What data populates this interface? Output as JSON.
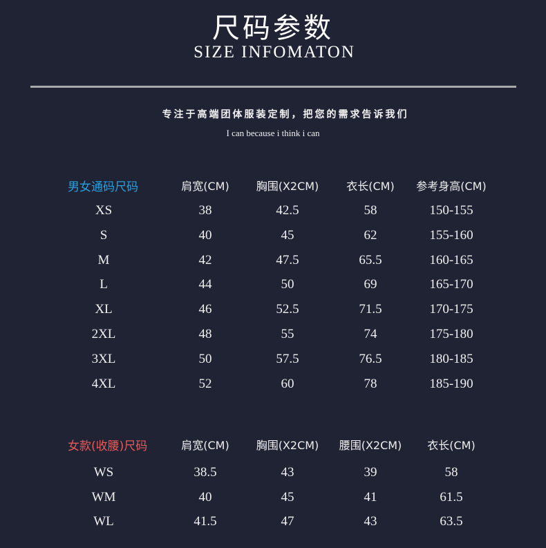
{
  "header": {
    "title": "尺码参数",
    "subtitle": "SIZE INFOMATON",
    "slogan": "专注于高端团体服装定制，把您的需求告诉我们",
    "motto": "I can because i think i can"
  },
  "colors": {
    "background": "#1f2334",
    "unisex_label": "#27a0e0",
    "women_label": "#e85a5a"
  },
  "unisex_table": {
    "label": "男女通码尺码",
    "columns": [
      "肩宽(CM)",
      "胸围(X2CM)",
      "衣长(CM)",
      "参考身高(CM)"
    ],
    "rows": [
      [
        "XS",
        "38",
        "42.5",
        "58",
        "150-155"
      ],
      [
        "S",
        "40",
        "45",
        "62",
        "155-160"
      ],
      [
        "M",
        "42",
        "47.5",
        "65.5",
        "160-165"
      ],
      [
        "L",
        "44",
        "50",
        "69",
        "165-170"
      ],
      [
        "XL",
        "46",
        "52.5",
        "71.5",
        "170-175"
      ],
      [
        "2XL",
        "48",
        "55",
        "74",
        "175-180"
      ],
      [
        "3XL",
        "50",
        "57.5",
        "76.5",
        "180-185"
      ],
      [
        "4XL",
        "52",
        "60",
        "78",
        "185-190"
      ]
    ]
  },
  "women_table": {
    "label": "女款(收腰)尺码",
    "columns": [
      "肩宽(CM)",
      "胸围(X2CM)",
      "腰围(X2CM)",
      "衣长(CM)"
    ],
    "rows": [
      [
        "WS",
        "38.5",
        "43",
        "39",
        "58"
      ],
      [
        "WM",
        "40",
        "45",
        "41",
        "61.5"
      ],
      [
        "WL",
        "41.5",
        "47",
        "43",
        "63.5"
      ]
    ]
  }
}
